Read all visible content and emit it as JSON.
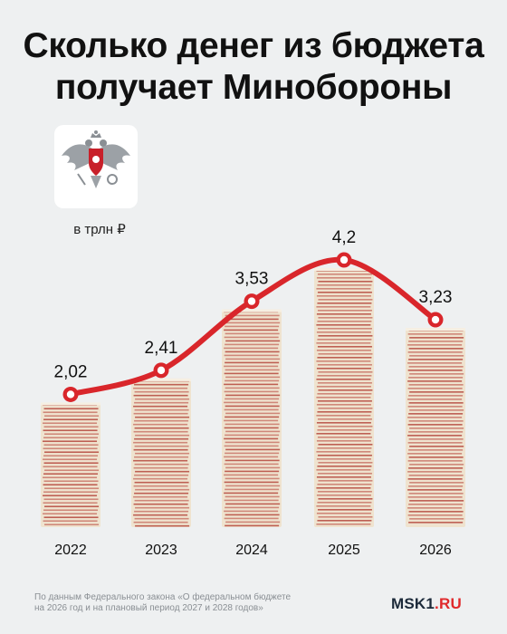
{
  "title_lines": [
    "Сколько денег из бюджета",
    "получает Минобороны"
  ],
  "unit_label": "в трлн ₽",
  "chart_data": {
    "type": "bar",
    "categories": [
      "2022",
      "2023",
      "2024",
      "2025",
      "2026"
    ],
    "values": [
      2.02,
      2.41,
      3.53,
      4.2,
      3.23
    ],
    "value_labels": [
      "2,02",
      "2,41",
      "3,53",
      "4,2",
      "3,23"
    ],
    "ylabel": "в трлн ₽",
    "line_color": "#d9262b"
  },
  "footnote_lines": [
    "По данным Федерального закона «О федеральном бюджете",
    "на 2026 год и на плановый период 2027 и 2028 годов»"
  ],
  "brand": {
    "part1": "MSK1",
    "part2": ".RU"
  },
  "emblem_icon": "double-headed-eagle-emblem-icon",
  "colors": {
    "accent": "#d9262b",
    "background": "#eef0f1",
    "bill_red": "#b5483d",
    "bill_cream": "#efe3cf"
  }
}
